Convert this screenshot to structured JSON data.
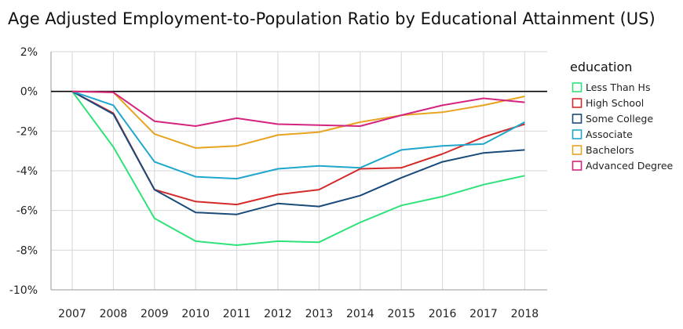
{
  "chart_data": {
    "type": "line",
    "title": "Age Adjusted Employment-to-Population Ratio by Educational Attainment (US)",
    "xlabel": "",
    "ylabel": "",
    "x": [
      2007,
      2008,
      2009,
      2010,
      2011,
      2012,
      2013,
      2014,
      2015,
      2016,
      2017,
      2018
    ],
    "ylim": [
      -10,
      2
    ],
    "yticks": [
      2,
      0,
      -2,
      -4,
      -6,
      -8,
      -10
    ],
    "ytick_labels": [
      "2%",
      "0%",
      "-2%",
      "-4%",
      "-6%",
      "-8%",
      "-10%"
    ],
    "grid": true,
    "zero_line": true,
    "legend": {
      "title": "education",
      "placement": "right"
    },
    "series": [
      {
        "name": "Less Than Hs",
        "color": "#2ee27a",
        "values": [
          0,
          -2.8,
          -6.4,
          -7.55,
          -7.75,
          -7.55,
          -7.6,
          -6.6,
          -5.75,
          -5.3,
          -4.7,
          -4.25
        ]
      },
      {
        "name": "High School",
        "color": "#d42a2a",
        "values": [
          0,
          -1.1,
          -4.95,
          -5.55,
          -5.7,
          -5.2,
          -4.95,
          -3.9,
          -3.85,
          -3.15,
          -2.3,
          -1.65
        ]
      },
      {
        "name": "Some College",
        "color": "#1a4a7a",
        "values": [
          0,
          -1.15,
          -4.95,
          -6.1,
          -6.2,
          -5.65,
          -5.8,
          -5.25,
          -4.35,
          -3.55,
          -3.1,
          -2.95
        ]
      },
      {
        "name": "Associate",
        "color": "#1fa6cc",
        "values": [
          0,
          -0.7,
          -3.55,
          -4.3,
          -4.4,
          -3.9,
          -3.75,
          -3.85,
          -2.95,
          -2.75,
          -2.65,
          -1.55
        ]
      },
      {
        "name": "Bachelors",
        "color": "#e8a31f",
        "values": [
          0,
          -0.05,
          -2.15,
          -2.85,
          -2.75,
          -2.2,
          -2.05,
          -1.55,
          -1.2,
          -1.05,
          -0.7,
          -0.25
        ]
      },
      {
        "name": "Advanced Degree",
        "color": "#d4247f",
        "values": [
          0,
          -0.05,
          -1.5,
          -1.75,
          -1.35,
          -1.65,
          -1.7,
          -1.75,
          -1.2,
          -0.7,
          -0.35,
          -0.55
        ]
      }
    ]
  }
}
